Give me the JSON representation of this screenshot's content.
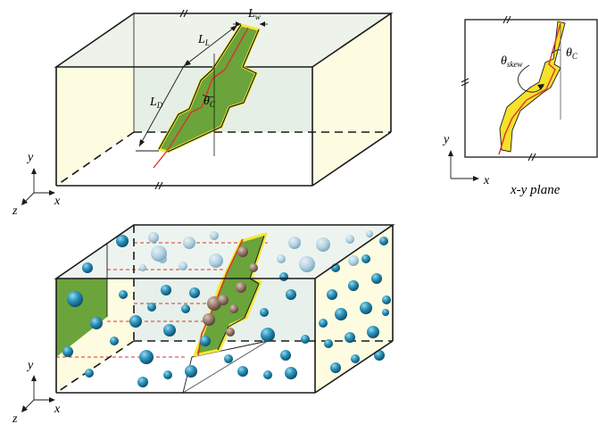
{
  "top_block": {
    "labels": {
      "Lw": {
        "main": "L",
        "sub": "w"
      },
      "LL": {
        "main": "L",
        "sub": "L"
      },
      "LD": {
        "main": "L",
        "sub": "D"
      },
      "thetaC": {
        "main": "θ",
        "sub": "C"
      }
    },
    "axes": {
      "y": "y",
      "x": "x",
      "z": "z"
    }
  },
  "plane_inset": {
    "labels": {
      "theta_skew": {
        "main": "θ",
        "sub": "skew"
      },
      "thetaC": {
        "main": "θ",
        "sub": "C"
      }
    },
    "axes": {
      "y": "y",
      "x": "x"
    },
    "caption": "x-y plane"
  },
  "bottom_block": {
    "axes": {
      "y": "y",
      "x": "x",
      "z": "z"
    }
  },
  "colors": {
    "box_face": "#fdfbe0",
    "box_back": "#e6efe6",
    "fracture_fill": "#6aa43a",
    "fracture_edge": "#f4e83a",
    "fracture_trace": "#d9342b",
    "grain": "#1b86ad",
    "grain_faded": "#a9cbdc",
    "outline": "#1a1a1a"
  }
}
